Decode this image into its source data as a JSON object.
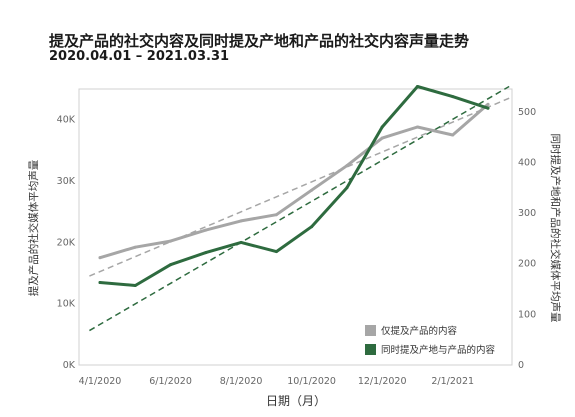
{
  "chart_data": {
    "type": "line",
    "title": "提及产品的社交内容及同时提及产地和产品的社交内容声量走势",
    "subtitle": "2020.04.01 – 2021.03.31",
    "xlabel": "日期（月）",
    "ylabel_left": "提及产品的社交媒体平均声量",
    "ylabel_right": "同时提及产地和产品的社交媒体平均声量",
    "x": [
      "2020-04",
      "2020-05",
      "2020-06",
      "2020-07",
      "2020-08",
      "2020-09",
      "2020-10",
      "2020-11",
      "2020-12",
      "2021-01",
      "2021-02",
      "2021-03"
    ],
    "x_ticks": [
      "4/1/2020",
      "6/1/2020",
      "8/1/2020",
      "10/1/2020",
      "12/1/2020",
      "2/1/2021"
    ],
    "y_left_ticks": [
      "0K",
      "10K",
      "20K",
      "30K",
      "40K"
    ],
    "y_right_ticks": [
      "0",
      "100",
      "200",
      "300",
      "400",
      "500"
    ],
    "ylim_left": [
      0,
      45000
    ],
    "ylim_right": [
      0,
      545
    ],
    "series": [
      {
        "name": "仅提及产品的内容",
        "axis": "left",
        "color": "#a6a6a6",
        "values": [
          17500,
          19200,
          20200,
          22000,
          23500,
          24500,
          28500,
          32500,
          37000,
          38800,
          37500,
          42500
        ]
      },
      {
        "name": "同时提及产地与产品的内容",
        "axis": "right",
        "color": "#2e6b3f",
        "values": [
          163,
          157,
          198,
          222,
          242,
          224,
          273,
          350,
          470,
          550,
          530,
          507
        ]
      }
    ],
    "trendlines": [
      {
        "axis": "left",
        "color": "#a6a6a6",
        "from": [
          -0.3,
          14500
        ],
        "to": [
          11.6,
          43500
        ]
      },
      {
        "axis": "right",
        "color": "#2e6b3f",
        "from": [
          -0.3,
          68
        ],
        "to": [
          11.6,
          550
        ]
      }
    ],
    "legend_position": "bottom-right",
    "grid": false
  }
}
